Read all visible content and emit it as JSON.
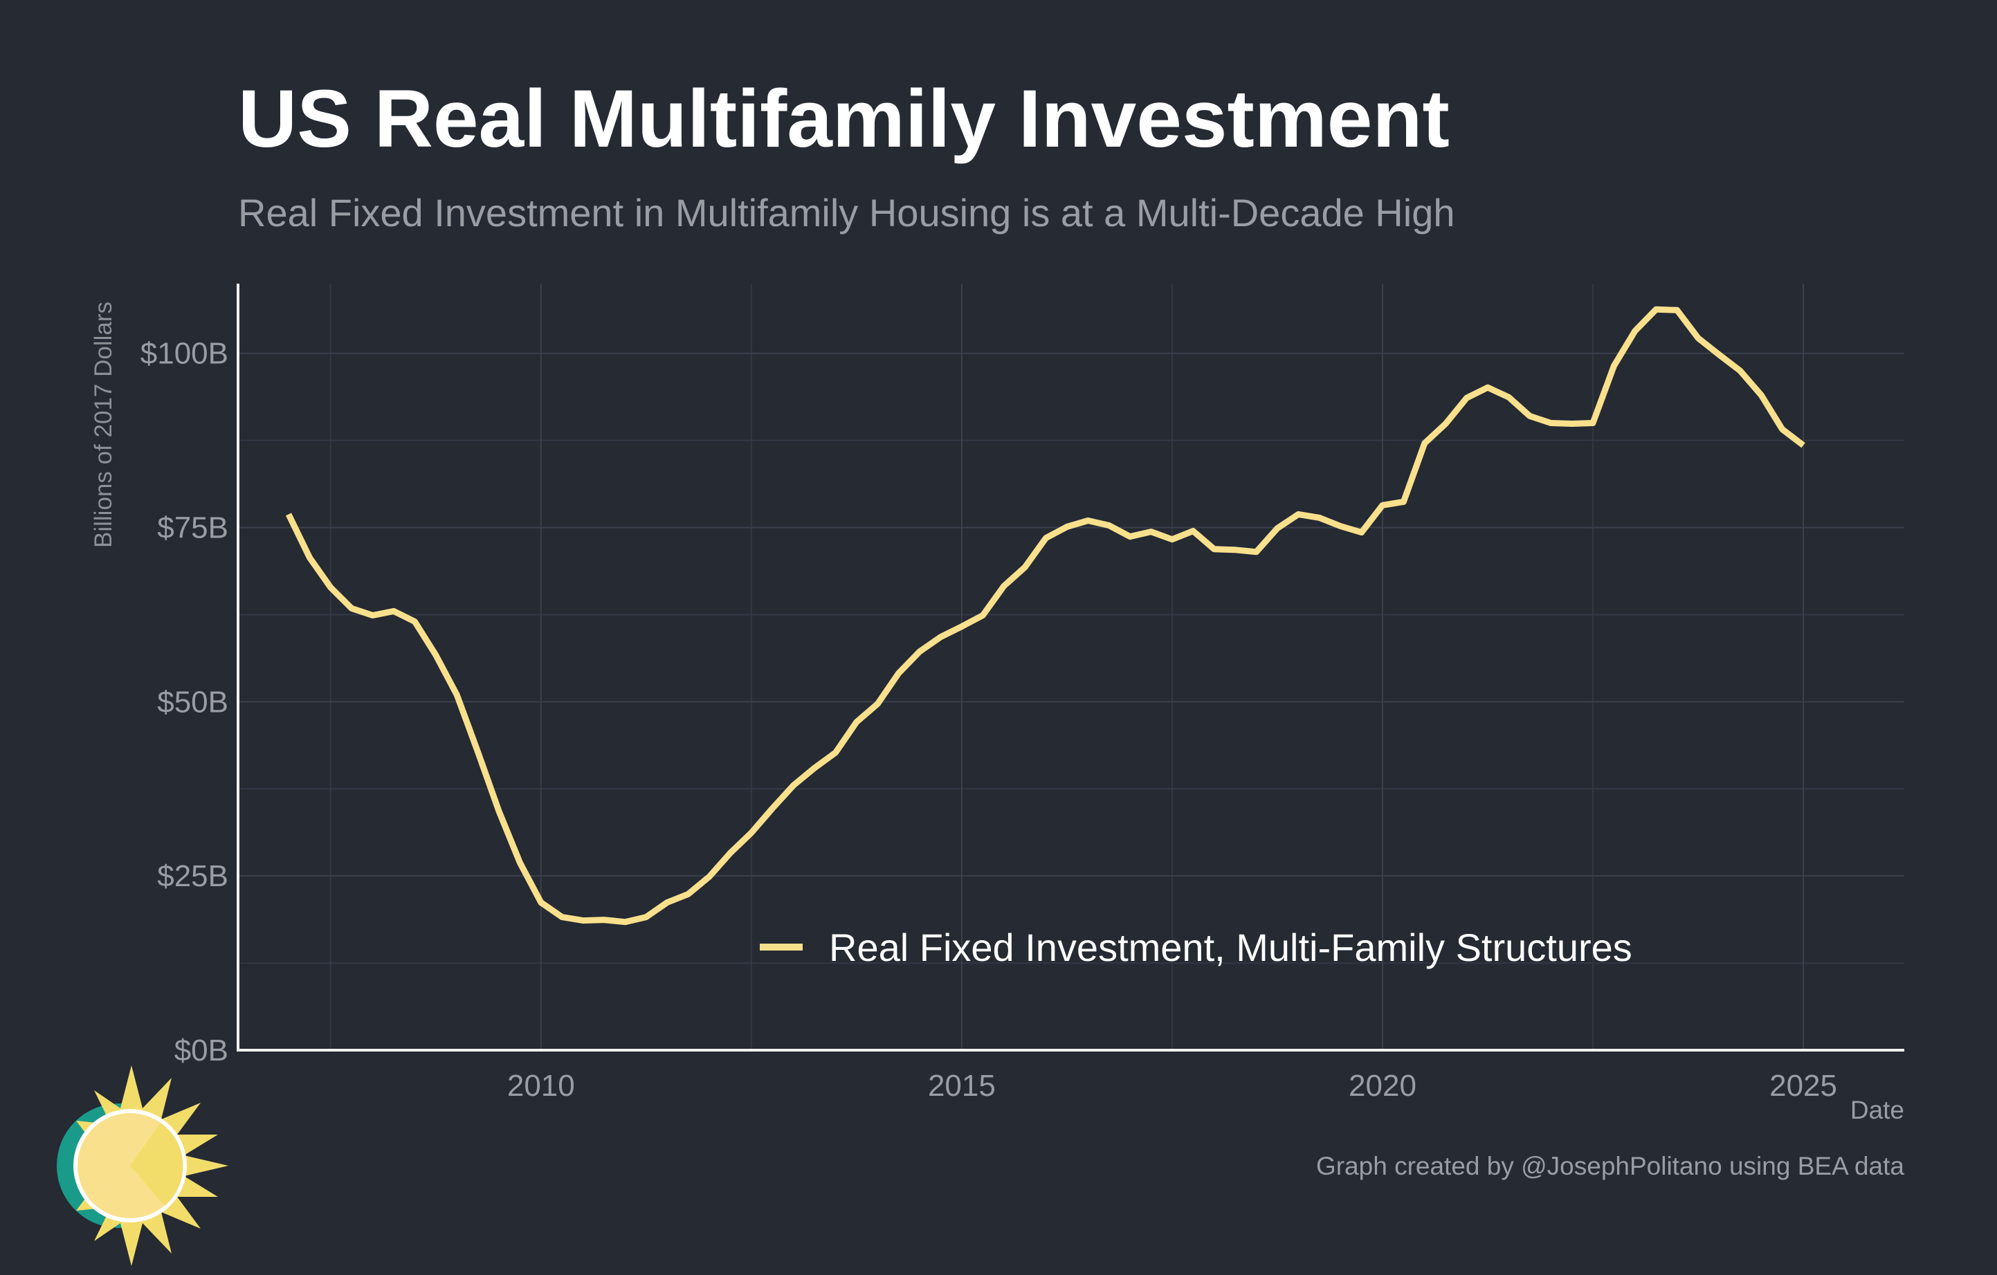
{
  "chart_data": {
    "type": "line",
    "title": "US Real Multifamily Investment",
    "subtitle": "Real Fixed Investment in Multifamily Housing is at a Multi-Decade High",
    "xlabel": "Date",
    "ylabel": "Billions of 2017 Dollars",
    "xlim": [
      2006.4,
      2026.2
    ],
    "ylim": [
      0,
      110
    ],
    "x_ticks": [
      2010,
      2015,
      2020,
      2025
    ],
    "x_tick_labels": [
      "2010",
      "2015",
      "2020",
      "2025"
    ],
    "y_ticks": [
      0,
      25,
      50,
      75,
      100
    ],
    "y_tick_labels": [
      "$0B",
      "$25B",
      "$50B",
      "$75B",
      "$100B"
    ],
    "grid": true,
    "legend_position": "bottom-right",
    "series": [
      {
        "name": "Real Fixed Investment, Multi-Family Structures",
        "color": "#f9e08c",
        "x": [
          2007.0,
          2007.25,
          2007.5,
          2007.75,
          2008.0,
          2008.25,
          2008.5,
          2008.75,
          2009.0,
          2009.25,
          2009.5,
          2009.75,
          2010.0,
          2010.25,
          2010.5,
          2010.75,
          2011.0,
          2011.25,
          2011.5,
          2011.75,
          2012.0,
          2012.25,
          2012.5,
          2012.75,
          2013.0,
          2013.25,
          2013.5,
          2013.75,
          2014.0,
          2014.25,
          2014.5,
          2014.75,
          2015.0,
          2015.25,
          2015.5,
          2015.75,
          2016.0,
          2016.25,
          2016.5,
          2016.75,
          2017.0,
          2017.25,
          2017.5,
          2017.75,
          2018.0,
          2018.25,
          2018.5,
          2018.75,
          2019.0,
          2019.25,
          2019.5,
          2019.75,
          2020.0,
          2020.25,
          2020.5,
          2020.75,
          2021.0,
          2021.25,
          2021.5,
          2021.75,
          2022.0,
          2022.25,
          2022.5,
          2022.75,
          2023.0,
          2023.25,
          2023.5,
          2023.75,
          2024.0,
          2024.25,
          2024.5,
          2024.75,
          2025.0
        ],
        "values": [
          76.9,
          70.7,
          66.4,
          63.4,
          62.4,
          63.0,
          61.5,
          56.7,
          51.0,
          42.8,
          34.3,
          26.9,
          21.2,
          19.1,
          18.6,
          18.7,
          18.4,
          19.1,
          21.2,
          22.4,
          24.9,
          28.3,
          31.2,
          34.7,
          38.0,
          40.5,
          42.7,
          47.1,
          49.7,
          54.1,
          57.2,
          59.3,
          60.8,
          62.4,
          66.6,
          69.3,
          73.5,
          75.1,
          76.0,
          75.3,
          73.7,
          74.4,
          73.3,
          74.5,
          71.9,
          71.8,
          71.5,
          74.9,
          76.9,
          76.4,
          75.2,
          74.3,
          78.2,
          78.7,
          87.1,
          89.9,
          93.6,
          95.1,
          93.7,
          91.0,
          90.0,
          89.9,
          90.0,
          98.2,
          103.2,
          106.3,
          106.2,
          102.2,
          99.8,
          97.5,
          94.0,
          89.1,
          86.8
        ]
      }
    ]
  },
  "footer": {
    "caption": "Graph created by @JosephPolitano using BEA data"
  },
  "logo": {
    "icon": "sun-logo-icon",
    "colors": [
      "#f9e08c",
      "#f3dd6a",
      "#1a9b8a",
      "#ffffff"
    ]
  }
}
